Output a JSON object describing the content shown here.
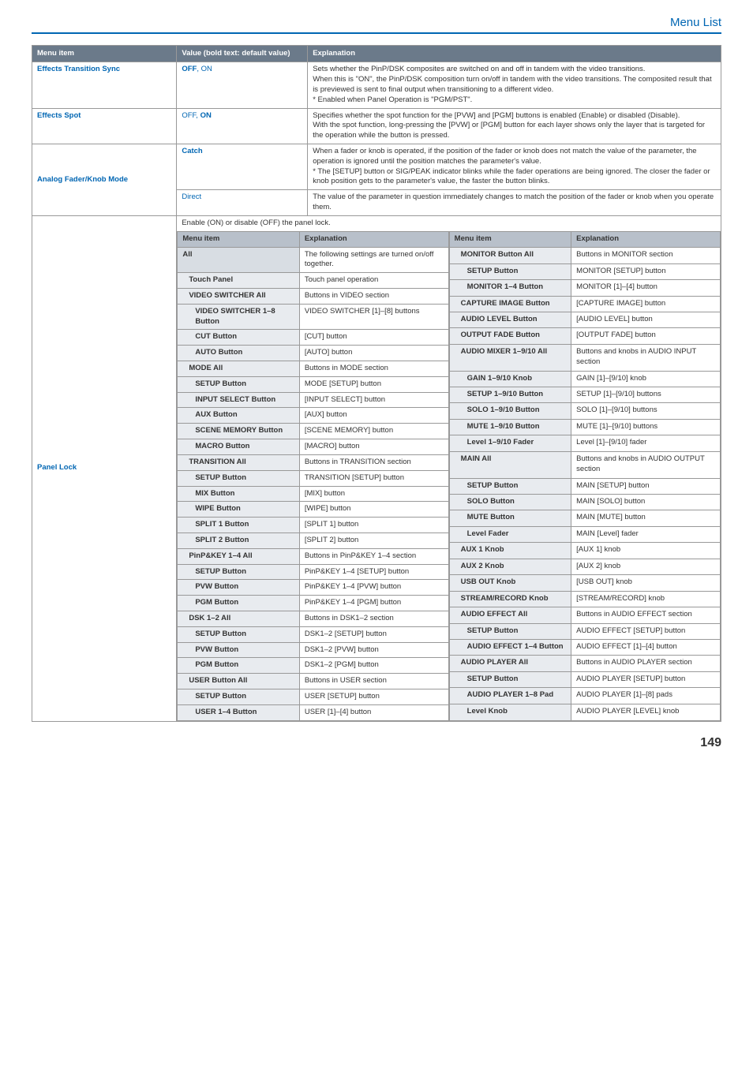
{
  "page": {
    "section_title": "Menu List",
    "number": "149"
  },
  "main_head": {
    "c1": "Menu item",
    "c2": "Value (bold text: default value)",
    "c3": "Explanation"
  },
  "rows": {
    "ets": {
      "item": "Effects Transition Sync",
      "val": "OFF, ON",
      "exp": "Sets whether the PinP/DSK composites are switched on and off in tandem with the video transitions.\nWhen this is \"ON\", the PinP/DSK composition turn on/off in tandem with the video transitions. The composited result that is previewed is sent to final output when transitioning to a different video.\n* Enabled when Panel Operation is \"PGM/PST\"."
    },
    "espot": {
      "item": "Effects Spot",
      "val": "OFF, ON",
      "exp": "Specifies whether the spot function for the [PVW] and [PGM] buttons is enabled (Enable) or disabled (Disable).\nWith the spot function, long-pressing the [PVW] or [PGM] button for each layer shows only the layer that is targeted for the operation while the button is pressed."
    },
    "afk": {
      "item": "Analog Fader/Knob Mode",
      "catch_val": "Catch",
      "catch_exp": "When a fader or knob is operated, if the position of the fader or knob does not match the value of the parameter, the operation is ignored until the position matches the parameter's value.\n* The [SETUP] button or SIG/PEAK indicator blinks while the fader operations are being ignored. The closer the fader or knob position gets to the parameter's value, the faster the button blinks.",
      "direct_val": "Direct",
      "direct_exp": "The value of the parameter in question immediately changes to match the position of the fader or knob when you operate them."
    },
    "plock": {
      "item": "Panel Lock",
      "enable_text": "Enable (ON) or disable (OFF) the panel lock."
    }
  },
  "nested_head": {
    "c1": "Menu item",
    "c2": "Explanation"
  },
  "left": [
    {
      "k": "All",
      "v": "The following settings are turned on/off together.",
      "cls": "n-item"
    },
    {
      "k": "Touch Panel",
      "v": "Touch panel operation",
      "cls": "n-item-sub"
    },
    {
      "k": "VIDEO SWITCHER All",
      "v": "Buttons in VIDEO section",
      "cls": "n-item-sub"
    },
    {
      "k": "VIDEO SWITCHER 1–8 Button",
      "v": "VIDEO SWITCHER [1]–[8] buttons",
      "cls": "n-item-sub2"
    },
    {
      "k": "CUT Button",
      "v": "[CUT] button",
      "cls": "n-item-sub2"
    },
    {
      "k": "AUTO Button",
      "v": "[AUTO] button",
      "cls": "n-item-sub2"
    },
    {
      "k": "MODE All",
      "v": "Buttons in MODE section",
      "cls": "n-item-sub"
    },
    {
      "k": "SETUP Button",
      "v": "MODE [SETUP] button",
      "cls": "n-item-sub2"
    },
    {
      "k": "INPUT SELECT Button",
      "v": "[INPUT SELECT] button",
      "cls": "n-item-sub2"
    },
    {
      "k": "AUX Button",
      "v": "[AUX] button",
      "cls": "n-item-sub2"
    },
    {
      "k": "SCENE MEMORY Button",
      "v": "[SCENE MEMORY] button",
      "cls": "n-item-sub2"
    },
    {
      "k": "MACRO Button",
      "v": "[MACRO] button",
      "cls": "n-item-sub2"
    },
    {
      "k": "TRANSITION All",
      "v": "Buttons in TRANSITION section",
      "cls": "n-item-sub"
    },
    {
      "k": "SETUP Button",
      "v": "TRANSITION [SETUP] button",
      "cls": "n-item-sub2"
    },
    {
      "k": "MIX Button",
      "v": "[MIX] button",
      "cls": "n-item-sub2"
    },
    {
      "k": "WIPE Button",
      "v": "[WIPE] button",
      "cls": "n-item-sub2"
    },
    {
      "k": "SPLIT 1 Button",
      "v": "[SPLIT 1] button",
      "cls": "n-item-sub2"
    },
    {
      "k": "SPLIT 2 Button",
      "v": "[SPLIT 2] button",
      "cls": "n-item-sub2"
    },
    {
      "k": "PinP&KEY 1–4 All",
      "v": "Buttons in PinP&KEY 1–4 section",
      "cls": "n-item-sub"
    },
    {
      "k": "SETUP Button",
      "v": "PinP&KEY 1–4 [SETUP] button",
      "cls": "n-item-sub2"
    },
    {
      "k": "PVW Button",
      "v": "PinP&KEY 1–4 [PVW] button",
      "cls": "n-item-sub2"
    },
    {
      "k": "PGM Button",
      "v": "PinP&KEY 1–4 [PGM] button",
      "cls": "n-item-sub2"
    },
    {
      "k": "DSK 1–2 All",
      "v": "Buttons in DSK1–2 section",
      "cls": "n-item-sub"
    },
    {
      "k": "SETUP Button",
      "v": "DSK1–2 [SETUP] button",
      "cls": "n-item-sub2"
    },
    {
      "k": "PVW Button",
      "v": "DSK1–2 [PVW] button",
      "cls": "n-item-sub2"
    },
    {
      "k": "PGM Button",
      "v": "DSK1–2 [PGM] button",
      "cls": "n-item-sub2"
    },
    {
      "k": "USER Button All",
      "v": "Buttons in USER section",
      "cls": "n-item-sub"
    },
    {
      "k": "SETUP Button",
      "v": "USER [SETUP] button",
      "cls": "n-item-sub2"
    },
    {
      "k": "USER 1–4 Button",
      "v": "USER [1]–[4] button",
      "cls": "n-item-sub2"
    }
  ],
  "right": [
    {
      "k": "MONITOR Button All",
      "v": "Buttons in MONITOR section",
      "cls": "n-item-sub"
    },
    {
      "k": "SETUP Button",
      "v": "MONITOR [SETUP] button",
      "cls": "n-item-sub2"
    },
    {
      "k": "MONITOR 1–4 Button",
      "v": "MONITOR [1]–[4] button",
      "cls": "n-item-sub2"
    },
    {
      "k": "CAPTURE IMAGE Button",
      "v": "[CAPTURE IMAGE] button",
      "cls": "n-item-sub"
    },
    {
      "k": "AUDIO LEVEL Button",
      "v": "[AUDIO LEVEL] button",
      "cls": "n-item-sub"
    },
    {
      "k": "OUTPUT FADE Button",
      "v": "[OUTPUT FADE] button",
      "cls": "n-item-sub"
    },
    {
      "k": "AUDIO MIXER 1–9/10 All",
      "v": "Buttons and knobs in AUDIO INPUT section",
      "cls": "n-item-sub"
    },
    {
      "k": "GAIN 1–9/10 Knob",
      "v": "GAIN [1]–[9/10] knob",
      "cls": "n-item-sub2"
    },
    {
      "k": "SETUP 1–9/10 Button",
      "v": "SETUP [1]–[9/10] buttons",
      "cls": "n-item-sub2"
    },
    {
      "k": "SOLO 1–9/10 Button",
      "v": "SOLO [1]–[9/10] buttons",
      "cls": "n-item-sub2"
    },
    {
      "k": "MUTE 1–9/10 Button",
      "v": "MUTE [1]–[9/10] buttons",
      "cls": "n-item-sub2"
    },
    {
      "k": "Level 1–9/10 Fader",
      "v": "Level [1]–[9/10] fader",
      "cls": "n-item-sub2"
    },
    {
      "k": "MAIN All",
      "v": "Buttons and knobs in AUDIO OUTPUT section",
      "cls": "n-item-sub"
    },
    {
      "k": "SETUP Button",
      "v": "MAIN [SETUP] button",
      "cls": "n-item-sub2"
    },
    {
      "k": "SOLO Button",
      "v": "MAIN [SOLO] button",
      "cls": "n-item-sub2"
    },
    {
      "k": "MUTE Button",
      "v": "MAIN [MUTE] button",
      "cls": "n-item-sub2"
    },
    {
      "k": "Level Fader",
      "v": "MAIN [Level] fader",
      "cls": "n-item-sub2"
    },
    {
      "k": "AUX 1 Knob",
      "v": "[AUX 1] knob",
      "cls": "n-item-sub"
    },
    {
      "k": "AUX 2 Knob",
      "v": "[AUX 2] knob",
      "cls": "n-item-sub"
    },
    {
      "k": "USB OUT Knob",
      "v": "[USB OUT] knob",
      "cls": "n-item-sub"
    },
    {
      "k": "STREAM/RECORD Knob",
      "v": "[STREAM/RECORD] knob",
      "cls": "n-item-sub"
    },
    {
      "k": "AUDIO EFFECT All",
      "v": "Buttons in AUDIO EFFECT section",
      "cls": "n-item-sub"
    },
    {
      "k": "SETUP Button",
      "v": "AUDIO EFFECT [SETUP] button",
      "cls": "n-item-sub2"
    },
    {
      "k": "AUDIO EFFECT 1–4 Button",
      "v": "AUDIO EFFECT [1]–[4] button",
      "cls": "n-item-sub2"
    },
    {
      "k": "AUDIO PLAYER All",
      "v": "Buttons in AUDIO PLAYER section",
      "cls": "n-item-sub"
    },
    {
      "k": "SETUP Button",
      "v": "AUDIO PLAYER [SETUP] button",
      "cls": "n-item-sub2"
    },
    {
      "k": "AUDIO PLAYER 1–8 Pad",
      "v": "AUDIO PLAYER [1]–[8] pads",
      "cls": "n-item-sub2"
    },
    {
      "k": "Level Knob",
      "v": "AUDIO PLAYER [LEVEL] knob",
      "cls": "n-item-sub2"
    }
  ]
}
